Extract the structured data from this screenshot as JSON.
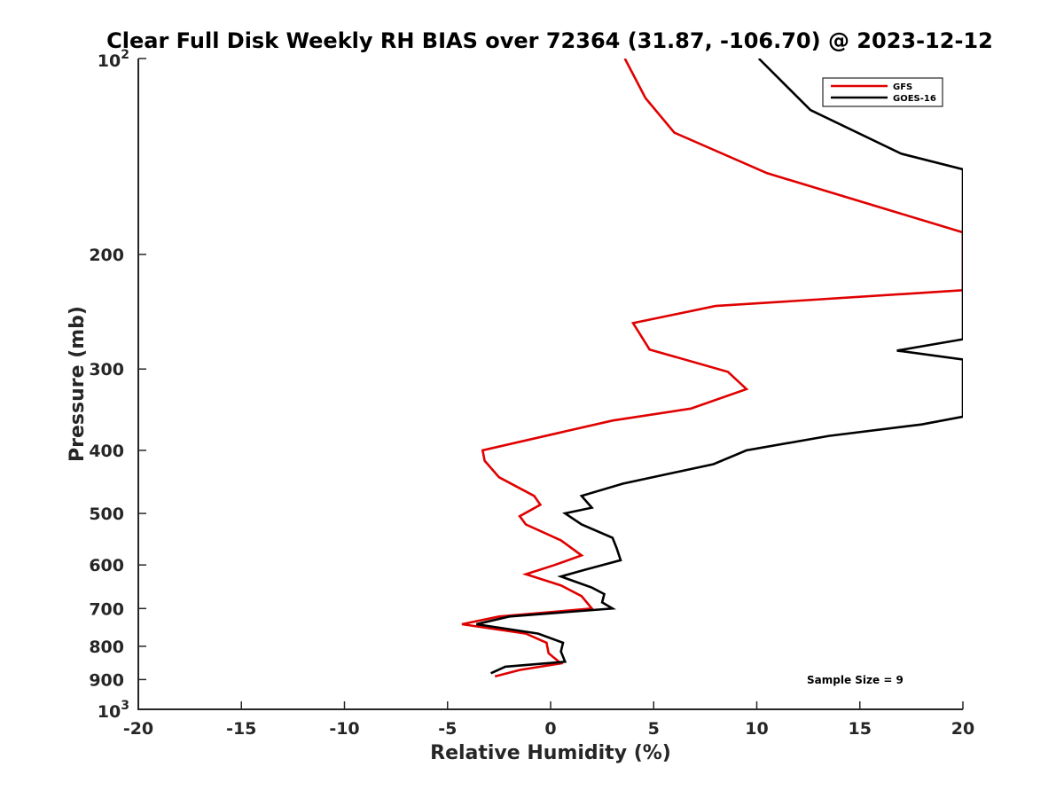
{
  "chart_data": {
    "type": "line",
    "title": "Clear Full Disk Weekly RH BIAS over 72364 (31.87, -106.70) @ 2023-12-12",
    "xlabel": "Relative Humidity (%)",
    "ylabel": "Pressure (mb)",
    "xlim": [
      -20,
      20
    ],
    "ylim": [
      100,
      1000
    ],
    "y_scale": "log",
    "y_reversed": true,
    "grid": false,
    "legend_position": "top-right",
    "x_ticks": [
      "-20",
      "-15",
      "-10",
      "-5",
      "0",
      "5",
      "10",
      "15",
      "20"
    ],
    "y_ticks": [
      {
        "value": 100,
        "base": "10",
        "exp": "2"
      },
      {
        "value": 200,
        "label": "200"
      },
      {
        "value": 300,
        "label": "300"
      },
      {
        "value": 400,
        "label": "400"
      },
      {
        "value": 500,
        "label": "500"
      },
      {
        "value": 600,
        "label": "600"
      },
      {
        "value": 700,
        "label": "700"
      },
      {
        "value": 800,
        "label": "800"
      },
      {
        "value": 900,
        "label": "900"
      },
      {
        "value": 1000,
        "base": "10",
        "exp": "3"
      }
    ],
    "annotation": "Sample Size = 9",
    "series": [
      {
        "name": "GFS",
        "color": "#e00000",
        "points": [
          [
            3.6,
            100
          ],
          [
            4.6,
            115
          ],
          [
            6.0,
            130
          ],
          [
            10.5,
            150
          ],
          [
            20.0,
            185
          ],
          [
            20.0,
            227
          ],
          [
            8.0,
            240
          ],
          [
            4.0,
            255
          ],
          [
            4.8,
            280
          ],
          [
            8.6,
            303
          ],
          [
            9.5,
            322
          ],
          [
            6.8,
            345
          ],
          [
            3.0,
            360
          ],
          [
            -3.3,
            400
          ],
          [
            -3.2,
            415
          ],
          [
            -2.5,
            440
          ],
          [
            -0.8,
            470
          ],
          [
            -0.5,
            485
          ],
          [
            -1.5,
            505
          ],
          [
            -1.2,
            520
          ],
          [
            0.5,
            550
          ],
          [
            1.5,
            580
          ],
          [
            0.2,
            600
          ],
          [
            -1.2,
            620
          ],
          [
            0.5,
            645
          ],
          [
            1.5,
            670
          ],
          [
            2.0,
            700
          ],
          [
            -2.5,
            720
          ],
          [
            -4.3,
            740
          ],
          [
            -1.2,
            765
          ],
          [
            -0.2,
            790
          ],
          [
            -0.1,
            820
          ],
          [
            0.5,
            850
          ],
          [
            -1.5,
            870
          ],
          [
            -2.7,
            890
          ]
        ]
      },
      {
        "name": "GOES-16",
        "color": "#000000",
        "points": [
          [
            10.1,
            100
          ],
          [
            12.6,
            120
          ],
          [
            17.0,
            140
          ],
          [
            20.0,
            148
          ],
          [
            20.0,
            270
          ],
          [
            16.8,
            281
          ],
          [
            20.0,
            290
          ],
          [
            20.0,
            355
          ],
          [
            18.0,
            365
          ],
          [
            13.5,
            380
          ],
          [
            9.5,
            400
          ],
          [
            7.9,
            420
          ],
          [
            3.5,
            450
          ],
          [
            1.5,
            470
          ],
          [
            2.0,
            490
          ],
          [
            0.7,
            500
          ],
          [
            1.5,
            520
          ],
          [
            3.0,
            545
          ],
          [
            3.2,
            565
          ],
          [
            3.4,
            590
          ],
          [
            1.7,
            610
          ],
          [
            0.5,
            625
          ],
          [
            2.0,
            650
          ],
          [
            2.6,
            665
          ],
          [
            2.5,
            685
          ],
          [
            3.0,
            700
          ],
          [
            -2.0,
            720
          ],
          [
            -3.6,
            740
          ],
          [
            -0.6,
            765
          ],
          [
            0.6,
            790
          ],
          [
            0.5,
            815
          ],
          [
            0.7,
            845
          ],
          [
            -2.2,
            860
          ],
          [
            -2.9,
            880
          ]
        ]
      }
    ]
  }
}
